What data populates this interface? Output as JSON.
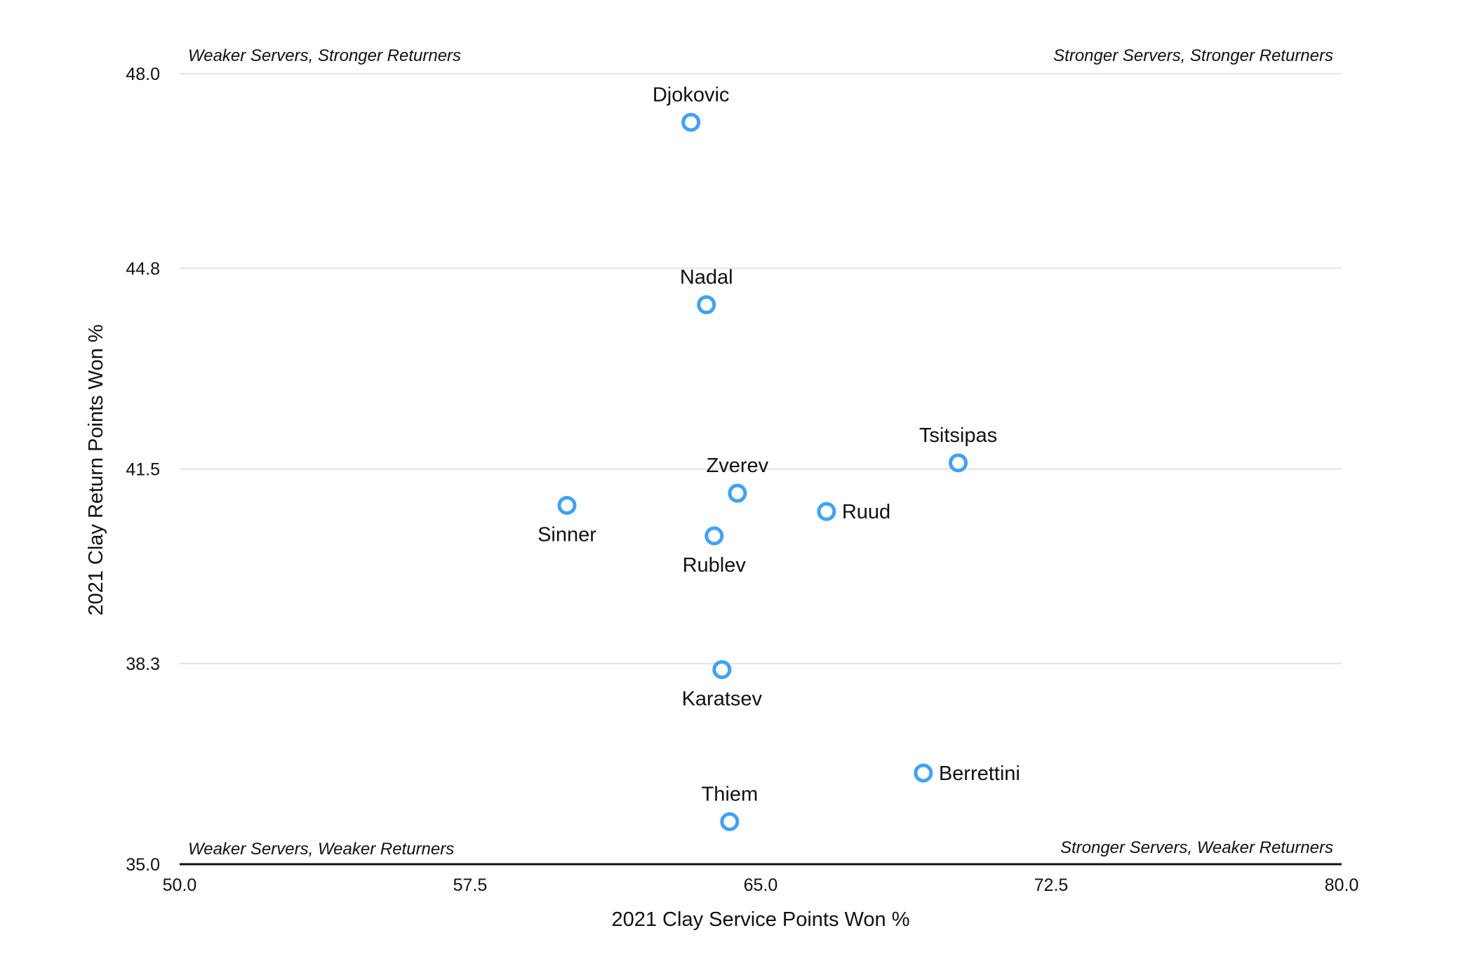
{
  "chart_data": {
    "type": "scatter",
    "title": "",
    "xlabel": "2021 Clay Service Points Won %",
    "ylabel": "2021 Clay Return Points Won %",
    "xlim": [
      50.0,
      80.0
    ],
    "ylim": [
      35.0,
      48.0
    ],
    "x_ticks": [
      "50.0",
      "57.5",
      "65.0",
      "72.5",
      "80.0"
    ],
    "y_ticks": [
      "35.0",
      "38.3",
      "41.5",
      "44.8",
      "48.0"
    ],
    "grid": true,
    "point_color": "#3ea2f7",
    "quadrant_labels": {
      "top_left": "Weaker Servers, Stronger Returners",
      "top_right": "Stronger Servers, Stronger Returners",
      "bottom_left": "Weaker Servers, Weaker Returners",
      "bottom_right": "Stronger Servers, Weaker Returners"
    },
    "points": [
      {
        "label": "Djokovic",
        "x": 63.2,
        "y": 47.2,
        "label_pos": "above"
      },
      {
        "label": "Nadal",
        "x": 63.6,
        "y": 44.2,
        "label_pos": "above"
      },
      {
        "label": "Tsitsipas",
        "x": 70.1,
        "y": 41.6,
        "label_pos": "above"
      },
      {
        "label": "Zverev",
        "x": 64.4,
        "y": 41.1,
        "label_pos": "above"
      },
      {
        "label": "Ruud",
        "x": 66.7,
        "y": 40.8,
        "label_pos": "right"
      },
      {
        "label": "Sinner",
        "x": 60.0,
        "y": 40.9,
        "label_pos": "below"
      },
      {
        "label": "Rublev",
        "x": 63.8,
        "y": 40.4,
        "label_pos": "below"
      },
      {
        "label": "Karatsev",
        "x": 64.0,
        "y": 38.2,
        "label_pos": "below"
      },
      {
        "label": "Berrettini",
        "x": 69.2,
        "y": 36.5,
        "label_pos": "right"
      },
      {
        "label": "Thiem",
        "x": 64.2,
        "y": 35.7,
        "label_pos": "above"
      }
    ]
  }
}
